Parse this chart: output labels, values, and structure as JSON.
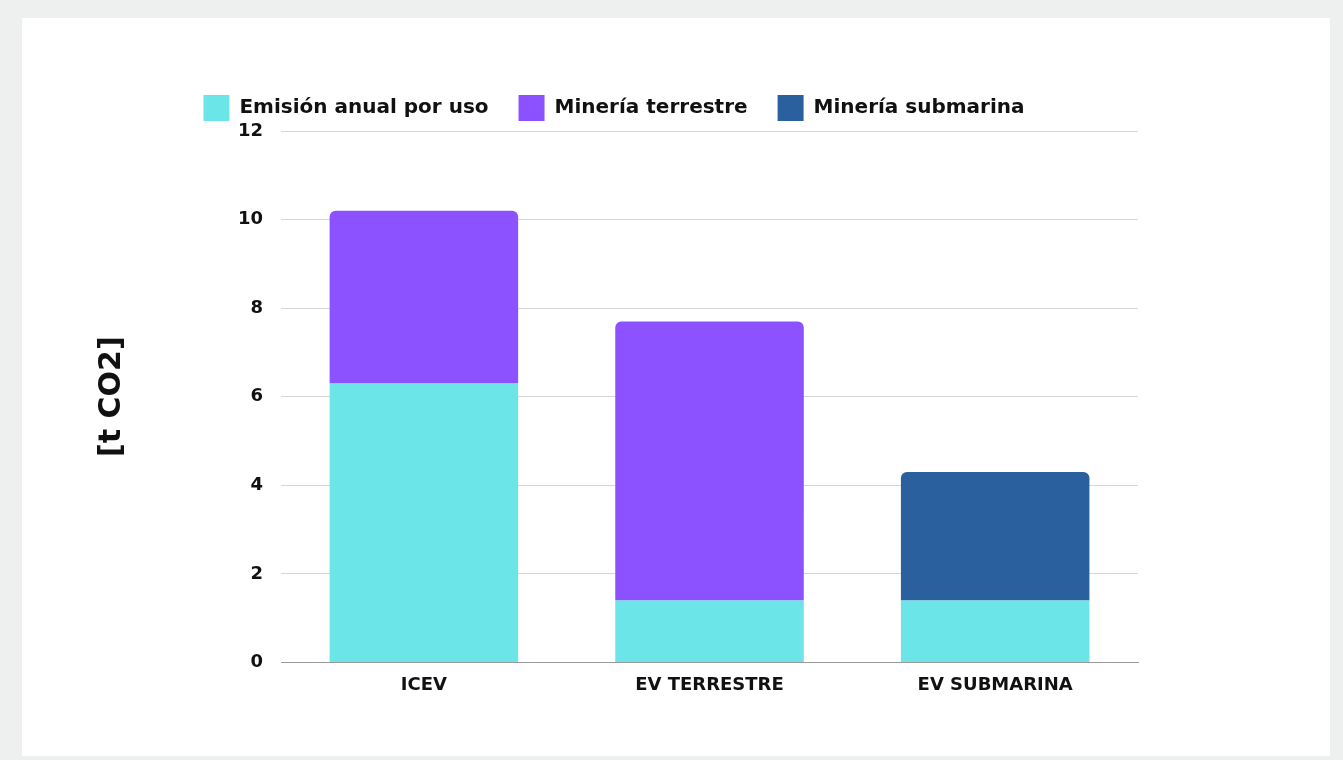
{
  "chart_data": {
    "type": "bar",
    "stacked": true,
    "ylabel": "[t CO2]",
    "categories": [
      "ICEV",
      "EV TERRESTRE",
      "EV SUBMARINA"
    ],
    "series": [
      {
        "name": "Emisión anual por uso",
        "color": "#6ce5e8",
        "values": [
          6.3,
          1.4,
          1.4
        ]
      },
      {
        "name": "Minería terrestre",
        "color": "#8c52ff",
        "values": [
          3.9,
          6.3,
          null
        ]
      },
      {
        "name": "Minería submarina",
        "color": "#2a609d",
        "values": [
          null,
          null,
          2.9
        ]
      }
    ],
    "ylim": [
      0,
      12
    ],
    "yticks": [
      0,
      2,
      4,
      6,
      8,
      10,
      12
    ],
    "grid": "y",
    "legend": "top"
  }
}
